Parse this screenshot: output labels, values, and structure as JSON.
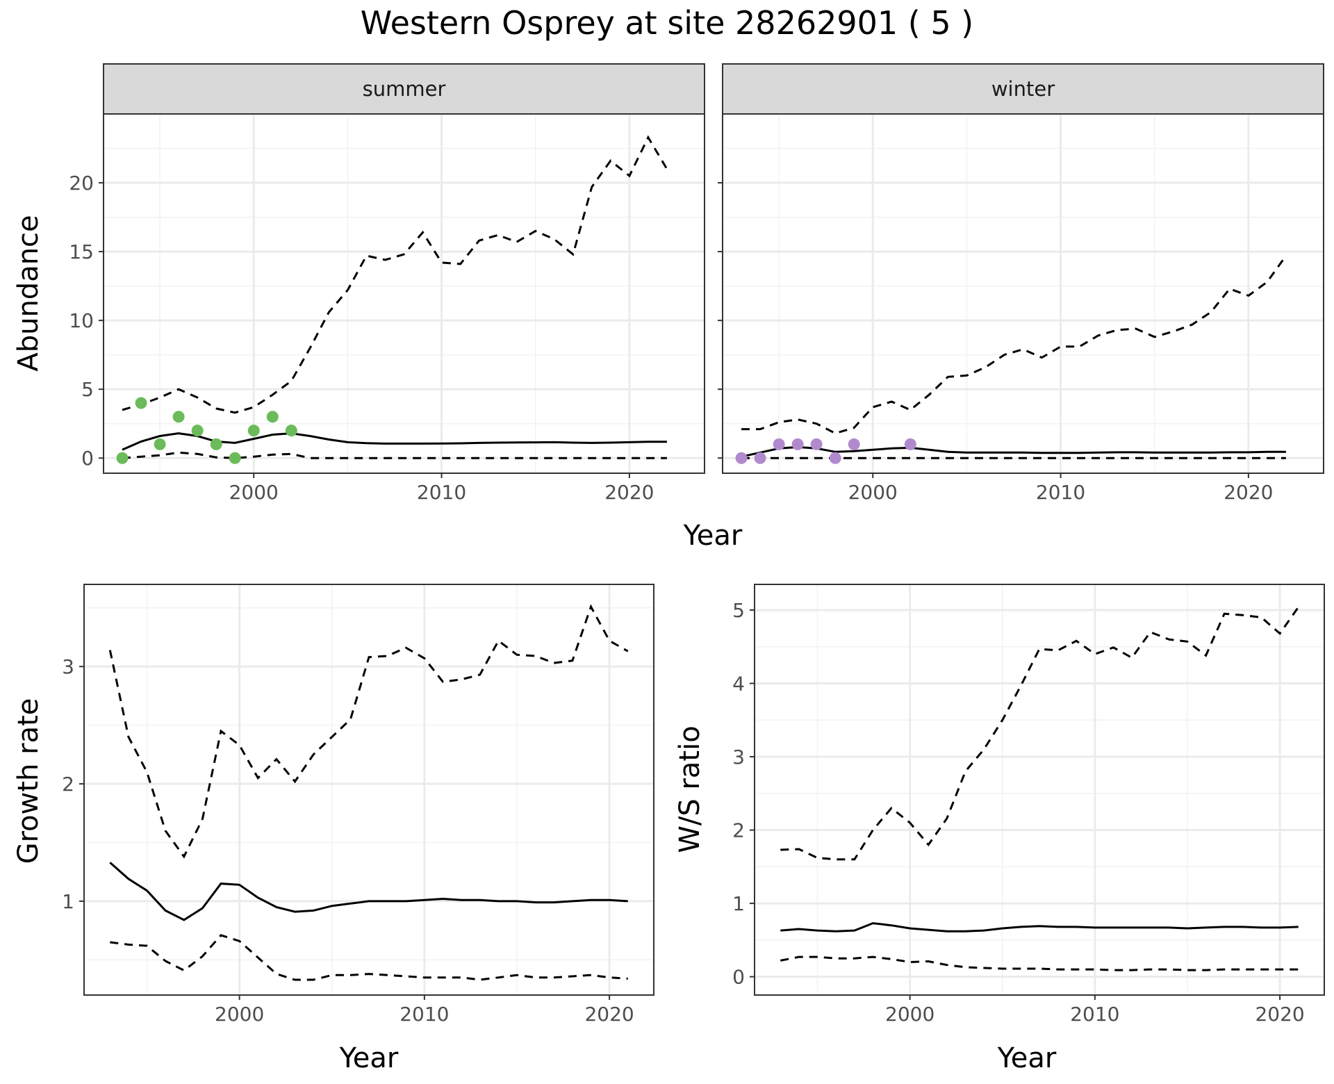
{
  "title": "Western Osprey at site 28262901 ( 5 )",
  "colors": {
    "summer_points": "#6cbb5a",
    "winter_points": "#b18acd",
    "line": "#000000",
    "strip_bg": "#d9d9d9",
    "grid": "#ebebeb"
  },
  "chart_data": [
    {
      "id": "abundance",
      "type": "line",
      "facets": [
        "summer",
        "winter"
      ],
      "xlabel": "Year",
      "ylabel": "Abundance",
      "xlim": [
        1992,
        2024
      ],
      "ylim": [
        -1.1,
        25
      ],
      "xticks": [
        2000,
        2010,
        2020
      ],
      "yticks": [
        0,
        5,
        10,
        15,
        20
      ],
      "panels": [
        {
          "facet": "summer",
          "years": [
            1993,
            1994,
            1995,
            1996,
            1997,
            1998,
            1999,
            2000,
            2001,
            2002,
            2003,
            2004,
            2005,
            2006,
            2007,
            2008,
            2009,
            2010,
            2011,
            2012,
            2013,
            2014,
            2015,
            2016,
            2017,
            2018,
            2019,
            2020,
            2021,
            2022
          ],
          "mean": [
            0.6,
            1.2,
            1.6,
            1.8,
            1.6,
            1.2,
            1.1,
            1.4,
            1.7,
            1.8,
            1.6,
            1.35,
            1.15,
            1.08,
            1.05,
            1.05,
            1.05,
            1.06,
            1.07,
            1.1,
            1.12,
            1.13,
            1.14,
            1.15,
            1.12,
            1.1,
            1.12,
            1.15,
            1.18,
            1.18
          ],
          "upper": [
            3.5,
            3.9,
            4.4,
            5.0,
            4.4,
            3.6,
            3.3,
            3.7,
            4.6,
            5.6,
            8.0,
            10.6,
            12.2,
            14.7,
            14.4,
            14.8,
            16.4,
            14.2,
            14.1,
            15.8,
            16.2,
            15.7,
            16.5,
            15.9,
            14.8,
            19.7,
            21.6,
            20.5,
            23.3,
            21.0
          ],
          "lower": [
            0,
            0.1,
            0.2,
            0.4,
            0.3,
            0.05,
            0,
            0.1,
            0.25,
            0.3,
            0,
            0,
            0,
            0,
            0,
            0,
            0,
            0,
            0,
            0,
            0,
            0,
            0,
            0,
            0,
            0,
            0,
            0,
            0,
            0
          ],
          "points": {
            "years": [
              1993,
              1994,
              1995,
              1996,
              1997,
              1998,
              1999,
              2000,
              2001,
              2002
            ],
            "counts": [
              0,
              4,
              1,
              3,
              2,
              1,
              0,
              2,
              3,
              2
            ]
          }
        },
        {
          "facet": "winter",
          "years": [
            1993,
            1994,
            1995,
            1996,
            1997,
            1998,
            1999,
            2000,
            2001,
            2002,
            2003,
            2004,
            2005,
            2006,
            2007,
            2008,
            2009,
            2010,
            2011,
            2012,
            2013,
            2014,
            2015,
            2016,
            2017,
            2018,
            2019,
            2020,
            2021,
            2022
          ],
          "mean": [
            0.1,
            0.4,
            0.7,
            0.8,
            0.7,
            0.45,
            0.5,
            0.6,
            0.7,
            0.75,
            0.6,
            0.45,
            0.4,
            0.4,
            0.4,
            0.4,
            0.38,
            0.38,
            0.38,
            0.4,
            0.42,
            0.42,
            0.4,
            0.4,
            0.4,
            0.4,
            0.42,
            0.42,
            0.45,
            0.45
          ],
          "upper": [
            2.1,
            2.1,
            2.6,
            2.8,
            2.5,
            1.8,
            2.2,
            3.7,
            4.1,
            3.5,
            4.6,
            5.9,
            6.0,
            6.6,
            7.5,
            7.9,
            7.3,
            8.1,
            8.1,
            8.9,
            9.3,
            9.4,
            8.8,
            9.2,
            9.7,
            10.6,
            12.3,
            11.8,
            12.8,
            14.7
          ],
          "lower": [
            0,
            0,
            0,
            0,
            0,
            0,
            0,
            0,
            0,
            0,
            0,
            0,
            0,
            0,
            0,
            0,
            0,
            0,
            0,
            0,
            0,
            0,
            0,
            0,
            0,
            0,
            0,
            0,
            0,
            0
          ],
          "points": {
            "years": [
              1993,
              1994,
              1995,
              1996,
              1997,
              1998,
              1999,
              2002
            ],
            "counts": [
              0,
              0,
              1,
              1,
              1,
              0,
              1,
              1
            ]
          }
        }
      ]
    },
    {
      "id": "growth",
      "type": "line",
      "xlabel": "Year",
      "ylabel": "Growth rate",
      "xlim": [
        1991.6,
        2022.4
      ],
      "ylim": [
        0.2,
        3.7
      ],
      "xticks": [
        2000,
        2010,
        2020
      ],
      "yticks": [
        1,
        2,
        3
      ],
      "years": [
        1993,
        1994,
        1995,
        1996,
        1997,
        1998,
        1999,
        2000,
        2001,
        2002,
        2003,
        2004,
        2005,
        2006,
        2007,
        2008,
        2009,
        2010,
        2011,
        2012,
        2013,
        2014,
        2015,
        2016,
        2017,
        2018,
        2019,
        2020,
        2021
      ],
      "mean": [
        1.33,
        1.19,
        1.09,
        0.92,
        0.84,
        0.94,
        1.15,
        1.14,
        1.03,
        0.95,
        0.91,
        0.92,
        0.96,
        0.98,
        1.0,
        1.0,
        1.0,
        1.01,
        1.02,
        1.01,
        1.01,
        1.0,
        1.0,
        0.99,
        0.99,
        1.0,
        1.01,
        1.01,
        1.0
      ],
      "upper": [
        3.14,
        2.4,
        2.1,
        1.6,
        1.38,
        1.7,
        2.45,
        2.33,
        2.05,
        2.21,
        2.02,
        2.25,
        2.4,
        2.55,
        3.08,
        3.09,
        3.16,
        3.07,
        2.87,
        2.89,
        2.93,
        3.22,
        3.1,
        3.09,
        3.03,
        3.05,
        3.51,
        3.22,
        3.13
      ],
      "lower": [
        0.65,
        0.63,
        0.62,
        0.49,
        0.41,
        0.53,
        0.71,
        0.66,
        0.52,
        0.38,
        0.33,
        0.33,
        0.37,
        0.37,
        0.38,
        0.37,
        0.36,
        0.35,
        0.35,
        0.35,
        0.33,
        0.35,
        0.37,
        0.35,
        0.35,
        0.36,
        0.37,
        0.35,
        0.34
      ]
    },
    {
      "id": "ws_ratio",
      "type": "line",
      "xlabel": "Year",
      "ylabel": "W/S ratio",
      "xlim": [
        1991.6,
        2022.4
      ],
      "ylim": [
        -0.25,
        5.35
      ],
      "xticks": [
        2000,
        2010,
        2020
      ],
      "yticks": [
        0,
        1,
        2,
        3,
        4,
        5
      ],
      "years": [
        1993,
        1994,
        1995,
        1996,
        1997,
        1998,
        1999,
        2000,
        2001,
        2002,
        2003,
        2004,
        2005,
        2006,
        2007,
        2008,
        2009,
        2010,
        2011,
        2012,
        2013,
        2014,
        2015,
        2016,
        2017,
        2018,
        2019,
        2020,
        2021
      ],
      "mean": [
        0.63,
        0.65,
        0.63,
        0.62,
        0.63,
        0.73,
        0.7,
        0.66,
        0.64,
        0.62,
        0.62,
        0.63,
        0.66,
        0.68,
        0.69,
        0.68,
        0.68,
        0.67,
        0.67,
        0.67,
        0.67,
        0.67,
        0.66,
        0.67,
        0.68,
        0.68,
        0.67,
        0.67,
        0.68
      ],
      "upper": [
        1.73,
        1.74,
        1.62,
        1.6,
        1.6,
        2.0,
        2.3,
        2.1,
        1.8,
        2.16,
        2.8,
        3.1,
        3.5,
        3.97,
        4.47,
        4.45,
        4.58,
        4.4,
        4.49,
        4.35,
        4.7,
        4.6,
        4.57,
        4.38,
        4.95,
        4.93,
        4.9,
        4.68,
        5.04
      ],
      "lower": [
        0.22,
        0.27,
        0.27,
        0.25,
        0.25,
        0.27,
        0.24,
        0.2,
        0.21,
        0.16,
        0.13,
        0.12,
        0.11,
        0.11,
        0.11,
        0.1,
        0.1,
        0.1,
        0.09,
        0.09,
        0.1,
        0.1,
        0.09,
        0.09,
        0.1,
        0.1,
        0.1,
        0.1,
        0.1
      ]
    }
  ]
}
